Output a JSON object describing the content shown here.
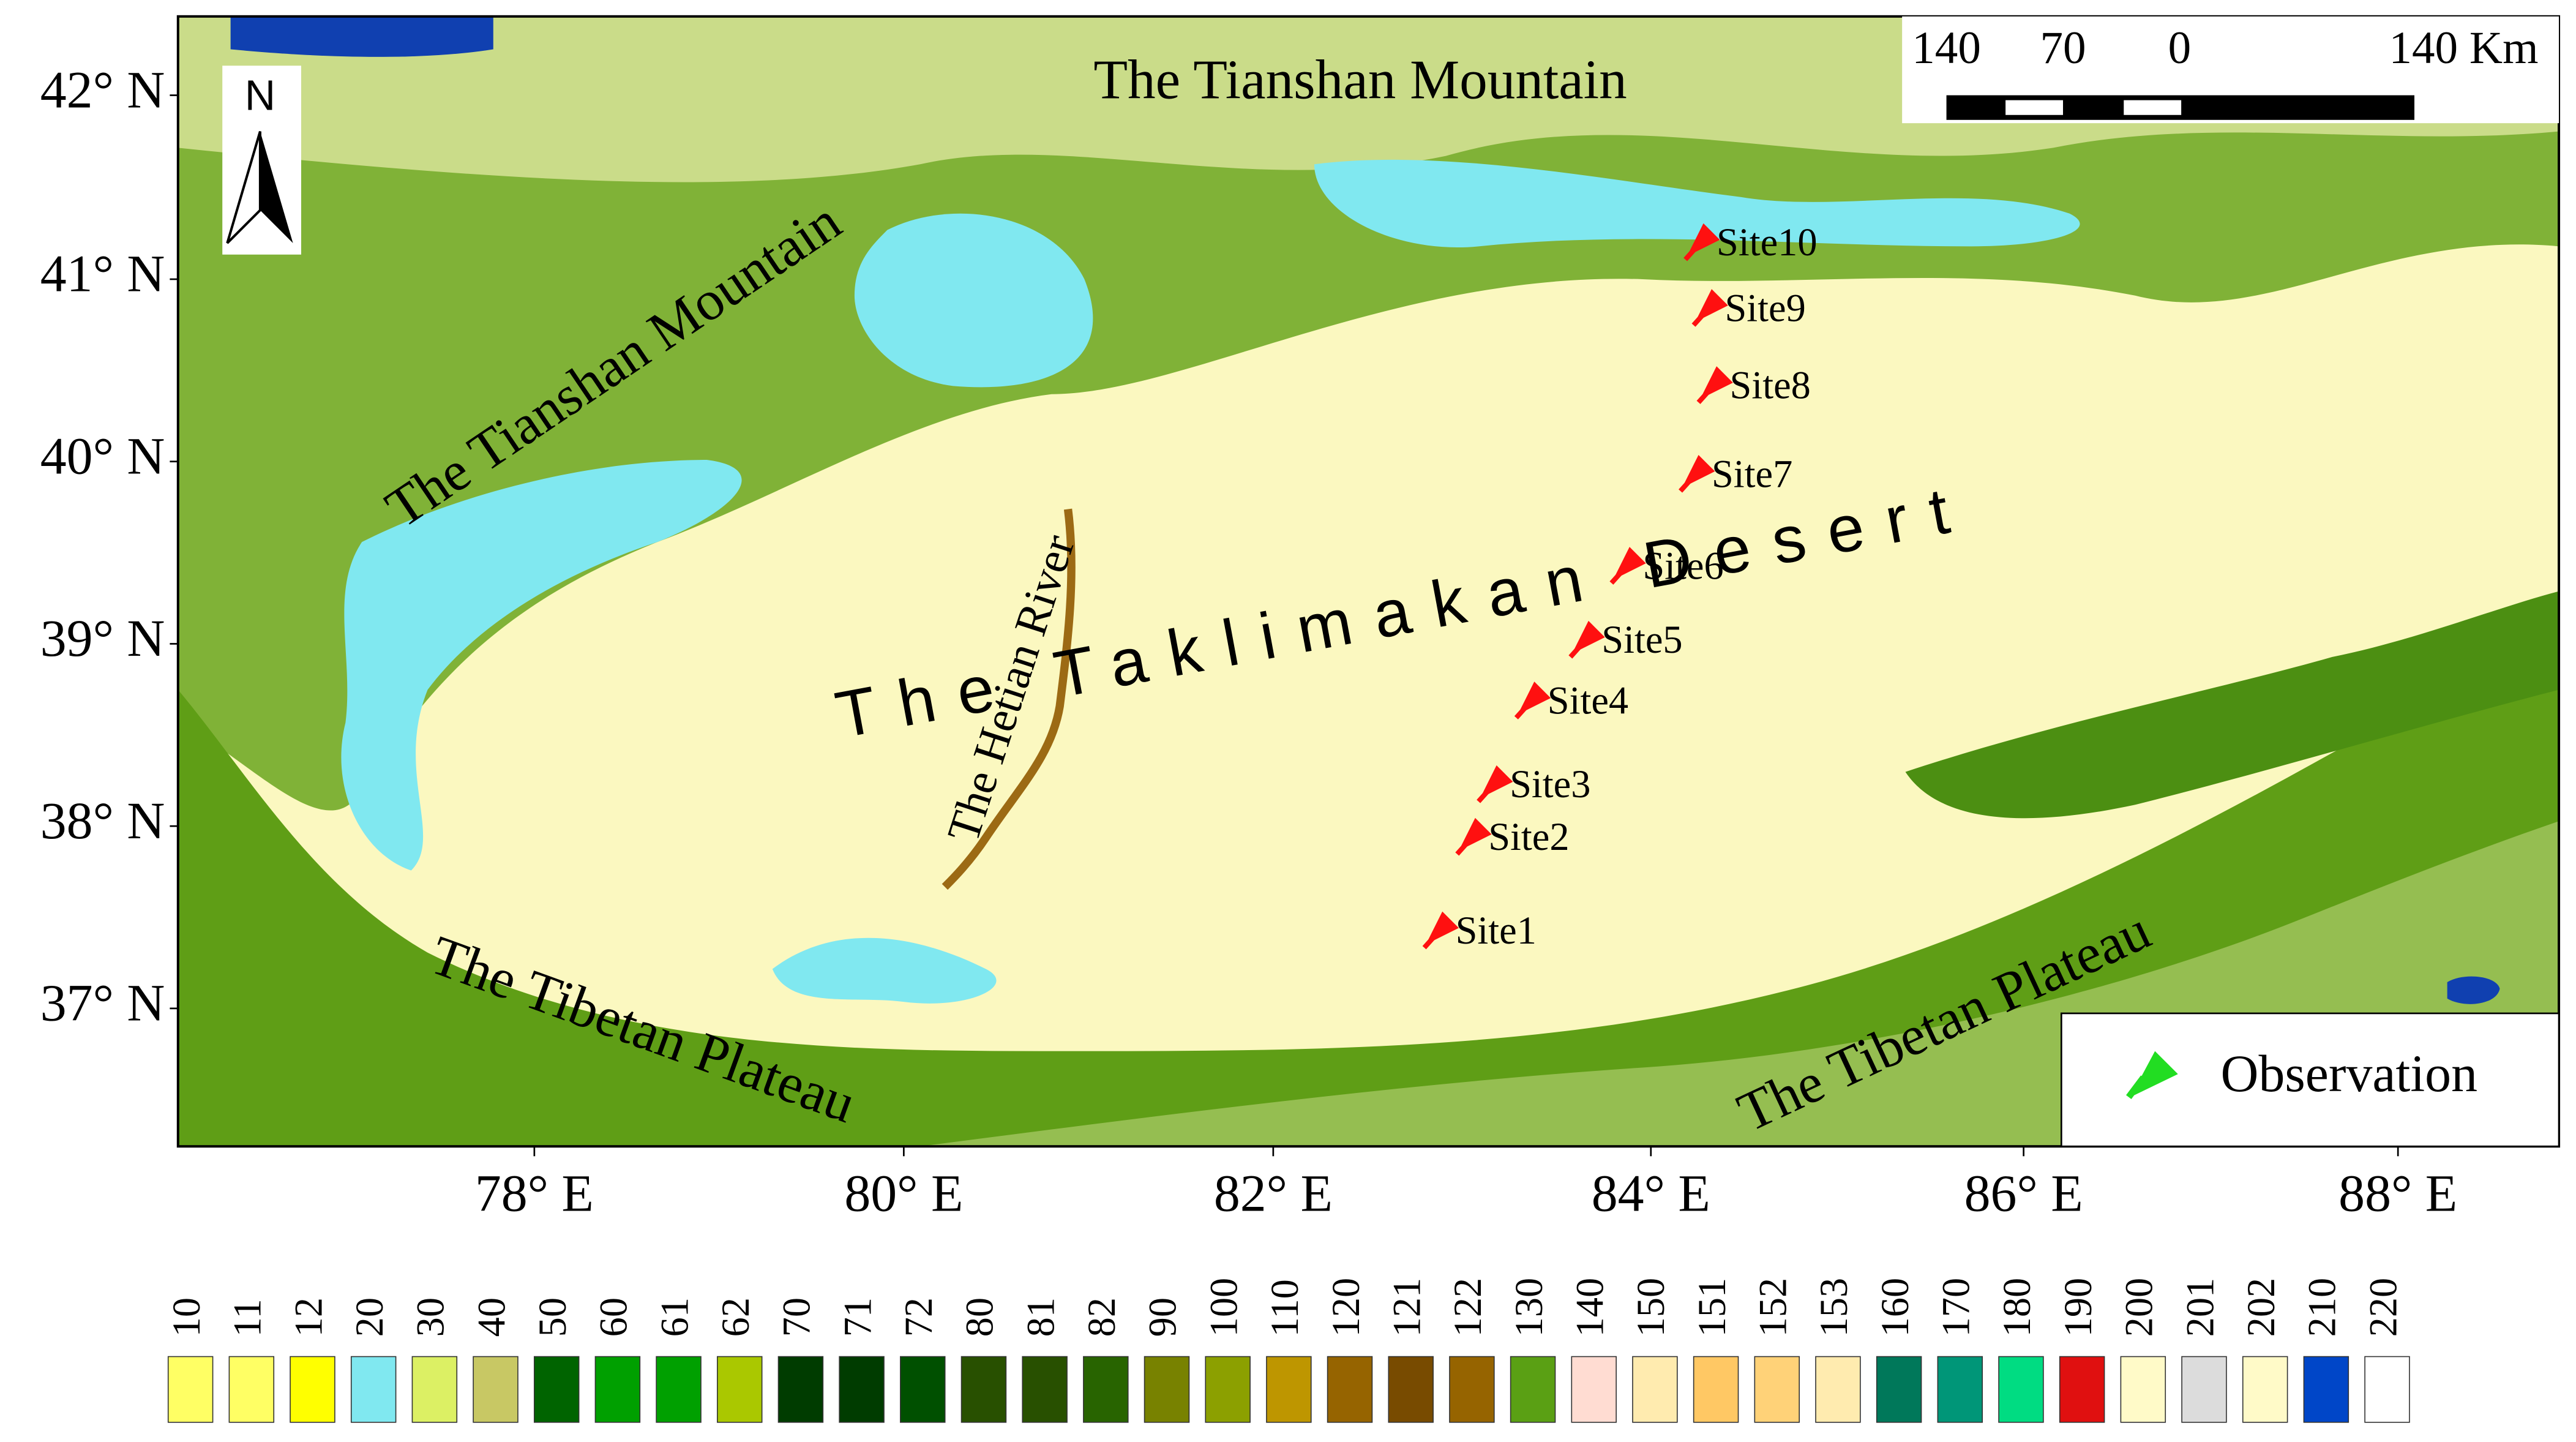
{
  "map": {
    "regions": [
      "The Tianshan Mountain",
      "The Tianshan Mountain",
      "The Hetian River",
      "The Taklimakan Desert",
      "The Tibetan Plateau",
      "The Tibetan Plateau"
    ],
    "north": "N",
    "sites": [
      "Site10",
      "Site9",
      "Site8",
      "Site7",
      "Site6",
      "Site5",
      "Site4",
      "Site3",
      "Site2",
      "Site1"
    ],
    "lat_labels": [
      "42° N",
      "41° N",
      "40° N",
      "39° N",
      "38° N",
      "37° N"
    ],
    "lon_labels": [
      "78° E",
      "80° E",
      "82° E",
      "84° E",
      "86° E",
      "88° E"
    ],
    "scale_bar": {
      "labels": [
        "140",
        "70",
        "0",
        "140 Km"
      ]
    },
    "legend": {
      "observation": "Observation"
    }
  },
  "land_cover_legend": {
    "classes": [
      {
        "code": 10,
        "color": "#ffff64"
      },
      {
        "code": 11,
        "color": "#ffff64"
      },
      {
        "code": 12,
        "color": "#ffff00"
      },
      {
        "code": 20,
        "color": "#80e8f0"
      },
      {
        "code": 30,
        "color": "#dcf064"
      },
      {
        "code": 40,
        "color": "#c8c864"
      },
      {
        "code": 50,
        "color": "#006400"
      },
      {
        "code": 60,
        "color": "#00a000"
      },
      {
        "code": 61,
        "color": "#00a000"
      },
      {
        "code": 62,
        "color": "#aac800"
      },
      {
        "code": 70,
        "color": "#003c00"
      },
      {
        "code": 71,
        "color": "#003c00"
      },
      {
        "code": 72,
        "color": "#005000"
      },
      {
        "code": 80,
        "color": "#285000"
      },
      {
        "code": 81,
        "color": "#285000"
      },
      {
        "code": 82,
        "color": "#286400"
      },
      {
        "code": 90,
        "color": "#788200"
      },
      {
        "code": 100,
        "color": "#8ca000"
      },
      {
        "code": 110,
        "color": "#be9600"
      },
      {
        "code": 120,
        "color": "#966400"
      },
      {
        "code": 121,
        "color": "#784b00"
      },
      {
        "code": 122,
        "color": "#966400"
      },
      {
        "code": 130,
        "color": "#5aa014"
      },
      {
        "code": 140,
        "color": "#ffdcd2"
      },
      {
        "code": 150,
        "color": "#ffebaf"
      },
      {
        "code": 151,
        "color": "#ffc864"
      },
      {
        "code": 152,
        "color": "#ffd278"
      },
      {
        "code": 153,
        "color": "#ffebaf"
      },
      {
        "code": 160,
        "color": "#00785a"
      },
      {
        "code": 170,
        "color": "#009678"
      },
      {
        "code": 180,
        "color": "#00dc82"
      },
      {
        "code": 190,
        "color": "#e01010"
      },
      {
        "code": 200,
        "color": "#fffac8"
      },
      {
        "code": 201,
        "color": "#dcdcdc"
      },
      {
        "code": 202,
        "color": "#fffac8"
      },
      {
        "code": 210,
        "color": "#0046c8"
      },
      {
        "code": 220,
        "color": "#ffffff"
      }
    ]
  }
}
